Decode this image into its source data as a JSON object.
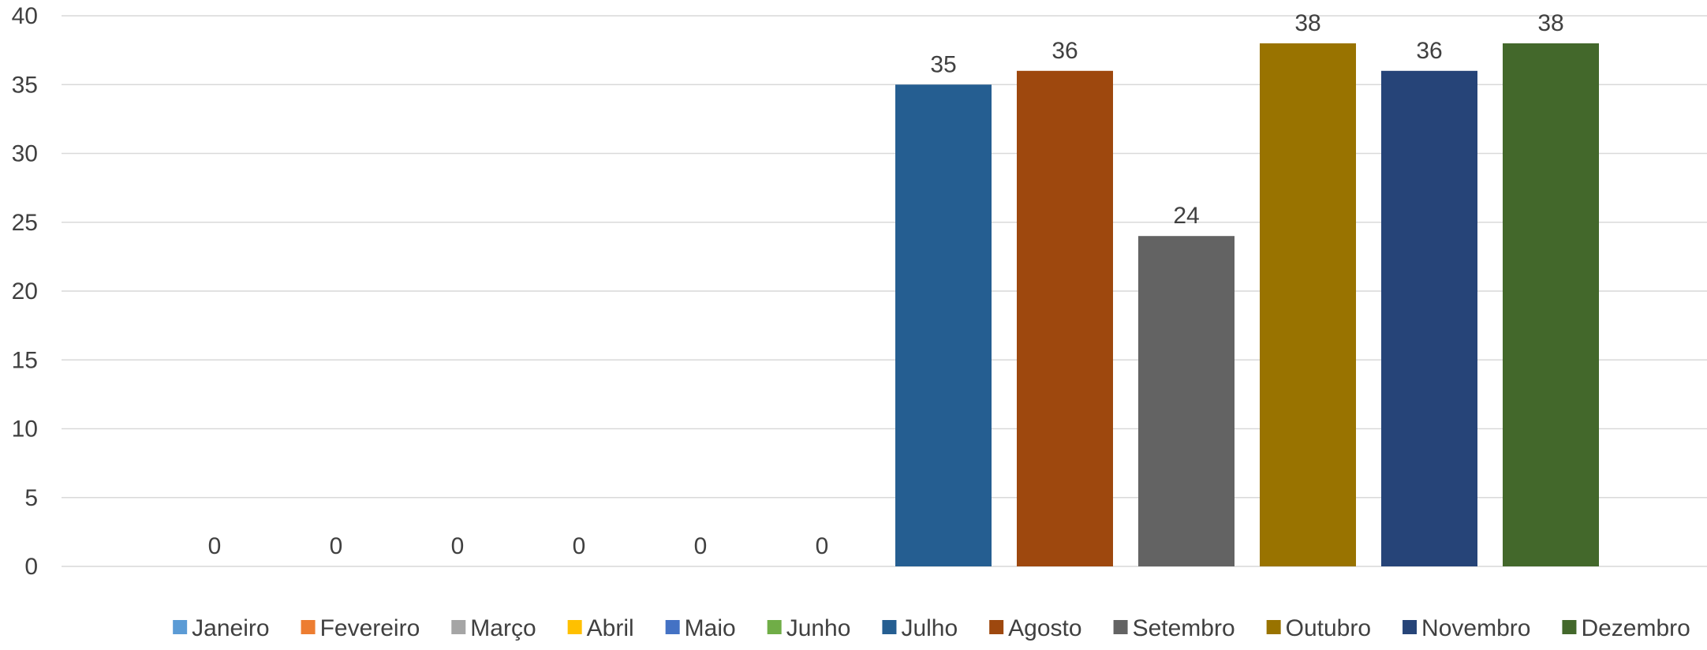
{
  "chart_data": {
    "type": "bar",
    "title": "",
    "xlabel": "",
    "ylabel": "",
    "ylim": [
      0,
      40
    ],
    "yticks": [
      0,
      5,
      10,
      15,
      20,
      25,
      30,
      35,
      40
    ],
    "grid": true,
    "legend_position": "bottom",
    "data_labels": true,
    "series": [
      {
        "name": "Janeiro",
        "value": 0,
        "color": "#5B9BD5"
      },
      {
        "name": "Fevereiro",
        "value": 0,
        "color": "#ED7D31"
      },
      {
        "name": "Março",
        "value": 0,
        "color": "#A5A5A5"
      },
      {
        "name": "Abril",
        "value": 0,
        "color": "#FFC000"
      },
      {
        "name": "Maio",
        "value": 0,
        "color": "#4472C4"
      },
      {
        "name": "Junho",
        "value": 0,
        "color": "#70AD47"
      },
      {
        "name": "Julho",
        "value": 35,
        "color": "#255E91"
      },
      {
        "name": "Agosto",
        "value": 36,
        "color": "#9E480E"
      },
      {
        "name": "Setembro",
        "value": 24,
        "color": "#636363"
      },
      {
        "name": "Outubro",
        "value": 38,
        "color": "#997300"
      },
      {
        "name": "Novembro",
        "value": 36,
        "color": "#264478"
      },
      {
        "name": "Dezembro",
        "value": 38,
        "color": "#43682B"
      }
    ]
  }
}
